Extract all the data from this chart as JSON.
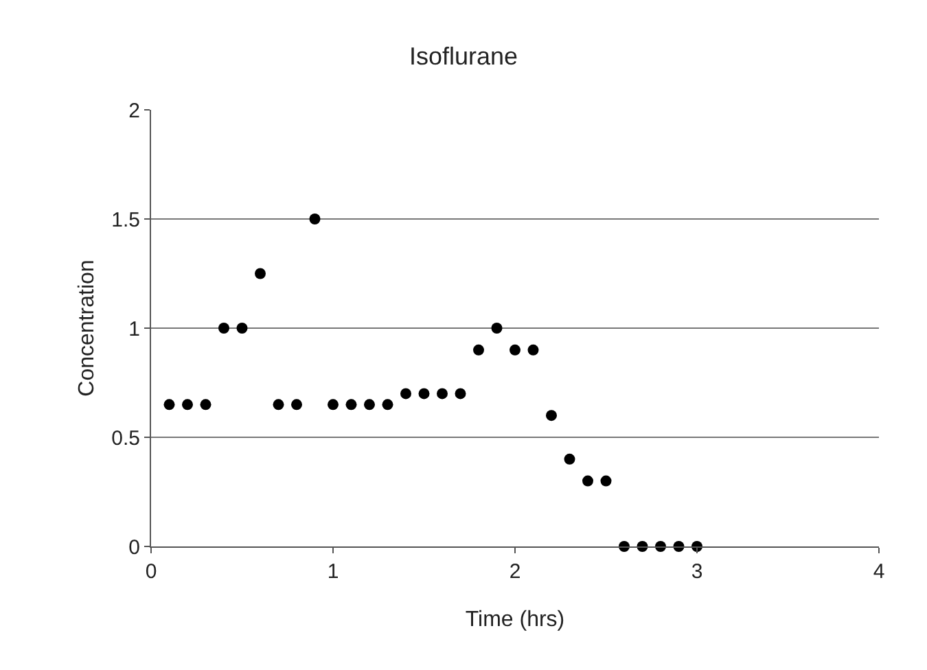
{
  "chart_data": {
    "type": "scatter",
    "title": "Isoflurane",
    "xlabel": "Time (hrs)",
    "ylabel": "Concentration",
    "x": [
      0.1,
      0.2,
      0.3,
      0.4,
      0.5,
      0.6,
      0.7,
      0.8,
      0.9,
      1.0,
      1.1,
      1.2,
      1.3,
      1.4,
      1.5,
      1.6,
      1.7,
      1.8,
      1.9,
      2.0,
      2.1,
      2.2,
      2.3,
      2.4,
      2.5,
      2.6,
      2.7,
      2.8,
      2.9,
      3.0
    ],
    "series": [
      {
        "color": "#000000",
        "values": [
          0.65,
          0.65,
          0.65,
          1.0,
          1.0,
          1.25,
          0.65,
          0.65,
          1.5,
          0.65,
          0.65,
          0.65,
          0.65,
          0.7,
          0.7,
          0.7,
          0.7,
          0.9,
          1.0,
          0.9,
          0.9,
          0.6,
          0.4,
          0.3,
          0.3,
          0,
          0,
          0,
          0,
          0
        ]
      }
    ],
    "xlim": [
      0,
      4
    ],
    "xticks": [
      0,
      1,
      2,
      3,
      4
    ],
    "ylim": [
      0,
      2
    ],
    "yticks": [
      0,
      0.5,
      1,
      1.5,
      2
    ],
    "grid": "y",
    "marker": "circle",
    "legend": false
  }
}
